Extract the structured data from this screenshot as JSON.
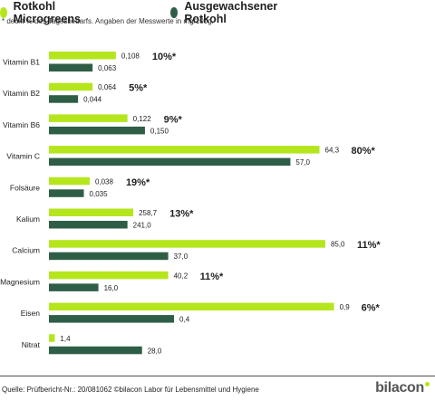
{
  "legend": [
    {
      "label": "Rotkohl Microgreens",
      "color": "#b5e61d"
    },
    {
      "label": "Ausgewachsener Rotkohl",
      "color": "#2f5e47"
    }
  ],
  "note": "* deckt % des Tagesbedarfs. Angaben der Messwerte in mg/100g.",
  "source": "Quelle: Prüfbericht-Nr.: 20/081062 ©bilacon Labor für Lebensmittel und Hygiene",
  "logo": "bilacon",
  "chart_data": {
    "type": "bar",
    "orientation": "horizontal",
    "categories": [
      "Vitamin B1",
      "Vitamin B2",
      "Vitamin B6",
      "Vitamin C",
      "Folsäure",
      "Kalium",
      "Calcium",
      "Magnesium",
      "Eisen",
      "Nitrat"
    ],
    "series": [
      {
        "name": "Rotkohl Microgreens",
        "color": "#b5e61d",
        "values": [
          0.108,
          0.064,
          0.122,
          64.3,
          0.038,
          258.7,
          85.0,
          40.2,
          0.9,
          1.4
        ],
        "labels": [
          "0,108",
          "0,064",
          "0,122",
          "64,3",
          "0,038",
          "258,7",
          "85,0",
          "40,2",
          "0,9",
          "1,4"
        ],
        "bar_fraction": [
          0.23,
          0.15,
          0.27,
          0.93,
          0.14,
          0.29,
          0.95,
          0.41,
          0.98,
          0.02
        ]
      },
      {
        "name": "Ausgewachsener Rotkohl",
        "color": "#2f5e47",
        "values": [
          0.063,
          0.044,
          0.15,
          57.0,
          0.035,
          241.0,
          37.0,
          16.0,
          0.4,
          28.0
        ],
        "labels": [
          "0,063",
          "0,044",
          "0,150",
          "57,0",
          "0,035",
          "241,0",
          "37,0",
          "16,0",
          "0,4",
          "28,0"
        ],
        "bar_fraction": [
          0.15,
          0.1,
          0.33,
          0.83,
          0.12,
          0.27,
          0.41,
          0.17,
          0.43,
          0.32
        ]
      }
    ],
    "annotations": [
      "10%*",
      "5%*",
      "9%*",
      "80%*",
      "19%*",
      "13%*",
      "11%*",
      "11%*",
      "6%*",
      ""
    ],
    "grid": false,
    "legend_position": "top-left"
  }
}
